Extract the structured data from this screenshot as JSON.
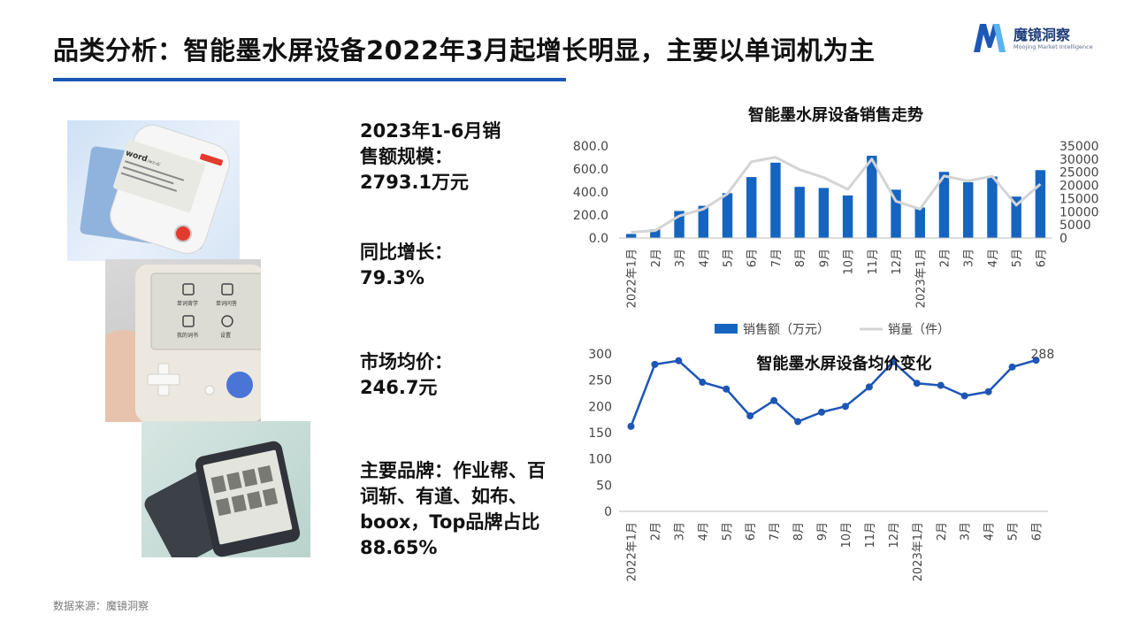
{
  "header": {
    "title": "品类分析：智能墨水屏设备2022年3月起增长明显，主要以单词机为主"
  },
  "logo": {
    "name": "魔镜洞察",
    "subtitle": "Moojing Market Intelligence",
    "icon": "m-letter-logo-icon",
    "color_dark": "#1d56b6",
    "color_light": "#5ab4ee"
  },
  "products": {
    "word_card": "word",
    "word_card_sub": "/wɜ:d/",
    "pocket_menu": [
      "单词背学",
      "单词问答",
      "我的词书",
      "设置"
    ]
  },
  "stats": [
    {
      "label": "2023年1-6月销售额规模：",
      "value": "2793.1万元"
    },
    {
      "label": "同比增长：",
      "value": "79.3%"
    },
    {
      "label": "市场均价：",
      "value": "246.7元"
    },
    {
      "label": "主要品牌：作业帮、百词斩、有道、如布、boox，Top品牌占比88.65%",
      "value": ""
    }
  ],
  "source": "数据来源：魔镜洞察",
  "chart_data": [
    {
      "type": "bar",
      "title": "智能墨水屏设备销售走势",
      "categories": [
        "2022年1月",
        "2月",
        "3月",
        "4月",
        "5月",
        "6月",
        "7月",
        "8月",
        "9月",
        "10月",
        "11月",
        "12月",
        "2023年1月",
        "2月",
        "3月",
        "4月",
        "5月",
        "6月"
      ],
      "series": [
        {
          "name": "销售额（万元）",
          "type": "bar",
          "axis": "left",
          "color": "#1565c0",
          "values": [
            35,
            75,
            235,
            280,
            390,
            530,
            655,
            445,
            435,
            370,
            715,
            420,
            265,
            575,
            485,
            535,
            360,
            590
          ]
        },
        {
          "name": "销量（件）",
          "type": "line",
          "axis": "right",
          "color": "#d4d4d4",
          "values": [
            2200,
            2800,
            8400,
            11000,
            16800,
            29000,
            30700,
            26000,
            23000,
            18500,
            30000,
            14000,
            11000,
            23600,
            21700,
            23500,
            12500,
            20500
          ]
        }
      ],
      "ylim_left": [
        0,
        800
      ],
      "yticks_left": [
        "0.0",
        "200.0",
        "400.0",
        "600.0",
        "800.0"
      ],
      "ylim_right": [
        0,
        35000
      ],
      "yticks_right": [
        "0",
        "5000",
        "10000",
        "15000",
        "20000",
        "25000",
        "30000",
        "35000"
      ],
      "legend": "bottom",
      "grid": false
    },
    {
      "type": "line",
      "title": "智能墨水屏设备均价变化",
      "categories": [
        "2022年1月",
        "2月",
        "3月",
        "4月",
        "5月",
        "6月",
        "7月",
        "8月",
        "9月",
        "10月",
        "11月",
        "12月",
        "2023年1月",
        "2月",
        "3月",
        "4月",
        "5月",
        "6月"
      ],
      "series": [
        {
          "name": "均价",
          "color": "#1d56b6",
          "values": [
            162,
            280,
            287,
            246,
            233,
            182,
            211,
            171,
            189,
            200,
            237,
            285,
            244,
            240,
            220,
            228,
            275,
            288
          ]
        }
      ],
      "ylim": [
        0,
        300
      ],
      "yticks": [
        "0",
        "50",
        "100",
        "150",
        "200",
        "250",
        "300"
      ],
      "last_label": "288",
      "grid": false
    }
  ]
}
